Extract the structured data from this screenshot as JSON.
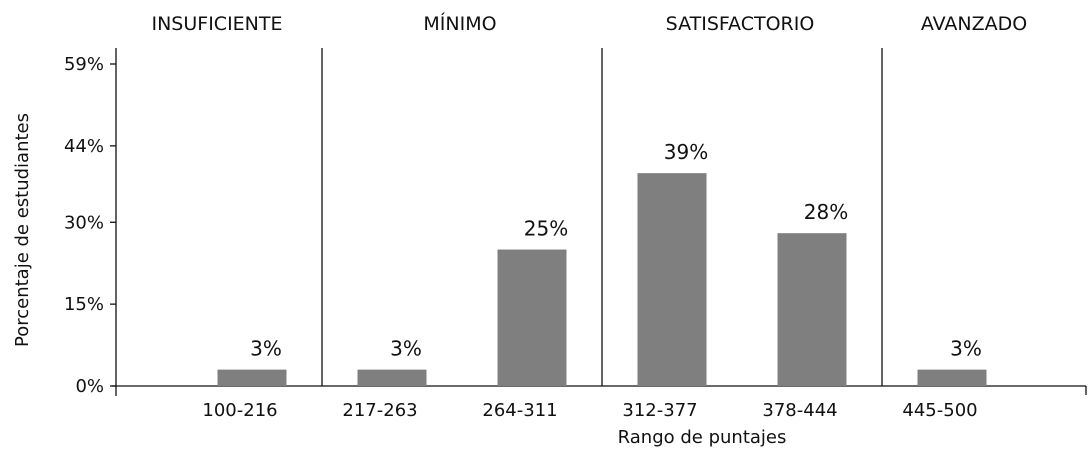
{
  "chart_data": {
    "type": "bar",
    "xlabel": "Rango de puntajes",
    "ylabel": "Porcentaje de estudiantes",
    "ylim": [
      0,
      59
    ],
    "yticks": [
      "0%",
      "15%",
      "30%",
      "44%",
      "59%"
    ],
    "ytick_values": [
      0,
      15,
      30,
      44,
      59
    ],
    "categories": [
      "100-216",
      "217-263",
      "264-311",
      "312-377",
      "378-444",
      "445-500"
    ],
    "values": [
      3,
      3,
      25,
      39,
      28,
      3
    ],
    "value_labels": [
      "3%",
      "3%",
      "25%",
      "39%",
      "28%",
      "3%"
    ],
    "bar_color": "#7f7f7f",
    "grid": false,
    "legend": "none",
    "levels": [
      {
        "name": "INSUFICIENTE",
        "categories": [
          "100-216"
        ]
      },
      {
        "name": "MÍNIMO",
        "categories": [
          "217-263",
          "264-311"
        ]
      },
      {
        "name": "SATISFACTORIO",
        "categories": [
          "312-377",
          "378-444"
        ]
      },
      {
        "name": "AVANZADO",
        "categories": [
          "445-500"
        ]
      }
    ]
  }
}
